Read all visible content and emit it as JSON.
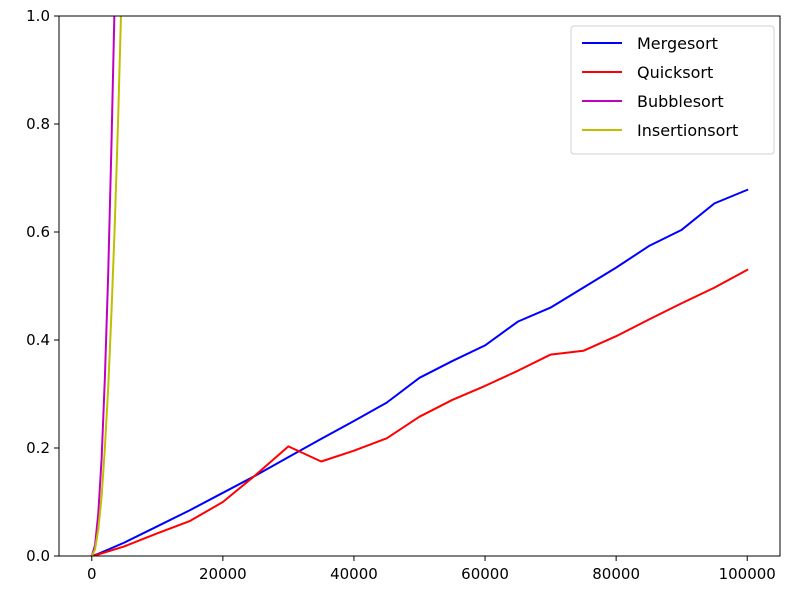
{
  "chart_data": {
    "type": "line",
    "title": "",
    "xlabel": "",
    "ylabel": "",
    "xlim": [
      -5000,
      105000
    ],
    "ylim": [
      0,
      1.0
    ],
    "grid": false,
    "legend_position": "top-right",
    "x_ticks": [
      0,
      20000,
      40000,
      60000,
      80000,
      100000
    ],
    "x_tick_labels": [
      "0",
      "20000",
      "40000",
      "60000",
      "80000",
      "100000"
    ],
    "y_ticks": [
      0.0,
      0.2,
      0.4,
      0.6,
      0.8,
      1.0
    ],
    "y_tick_labels": [
      "0.0",
      "0.2",
      "0.4",
      "0.6",
      "0.8",
      "1.0"
    ],
    "series": [
      {
        "name": "Mergesort",
        "color": "#0000ff",
        "x": [
          0,
          1000,
          5000,
          10000,
          15000,
          20000,
          25000,
          30000,
          35000,
          40000,
          45000,
          50000,
          55000,
          60000,
          65000,
          70000,
          75000,
          80000,
          85000,
          90000,
          95000,
          100000
        ],
        "y": [
          0,
          0.004,
          0.025,
          0.055,
          0.085,
          0.117,
          0.149,
          0.183,
          0.217,
          0.25,
          0.284,
          0.33,
          0.361,
          0.39,
          0.434,
          0.46,
          0.497,
          0.534,
          0.574,
          0.604,
          0.653,
          0.678
        ]
      },
      {
        "name": "Quicksort",
        "color": "#ff0000",
        "x": [
          0,
          1000,
          5000,
          10000,
          15000,
          20000,
          25000,
          30000,
          35000,
          40000,
          45000,
          50000,
          55000,
          60000,
          65000,
          70000,
          75000,
          80000,
          85000,
          90000,
          95000,
          100000
        ],
        "y": [
          0,
          0.003,
          0.018,
          0.042,
          0.065,
          0.1,
          0.15,
          0.203,
          0.175,
          0.195,
          0.218,
          0.258,
          0.289,
          0.315,
          0.343,
          0.373,
          0.38,
          0.407,
          0.438,
          0.468,
          0.497,
          0.53
        ]
      },
      {
        "name": "Bubblesort",
        "color": "#bf00bf",
        "x": [
          0,
          500,
          1000,
          1500,
          2000,
          2500,
          3000,
          3500
        ],
        "y": [
          0,
          0.02,
          0.08,
          0.18,
          0.33,
          0.52,
          0.76,
          1.03
        ]
      },
      {
        "name": "Insertionsort",
        "color": "#bfbf00",
        "x": [
          0,
          500,
          1000,
          1500,
          2000,
          2500,
          3000,
          3500,
          4000,
          4500
        ],
        "y": [
          0,
          0.012,
          0.05,
          0.11,
          0.2,
          0.31,
          0.45,
          0.61,
          0.8,
          1.02
        ]
      }
    ]
  }
}
